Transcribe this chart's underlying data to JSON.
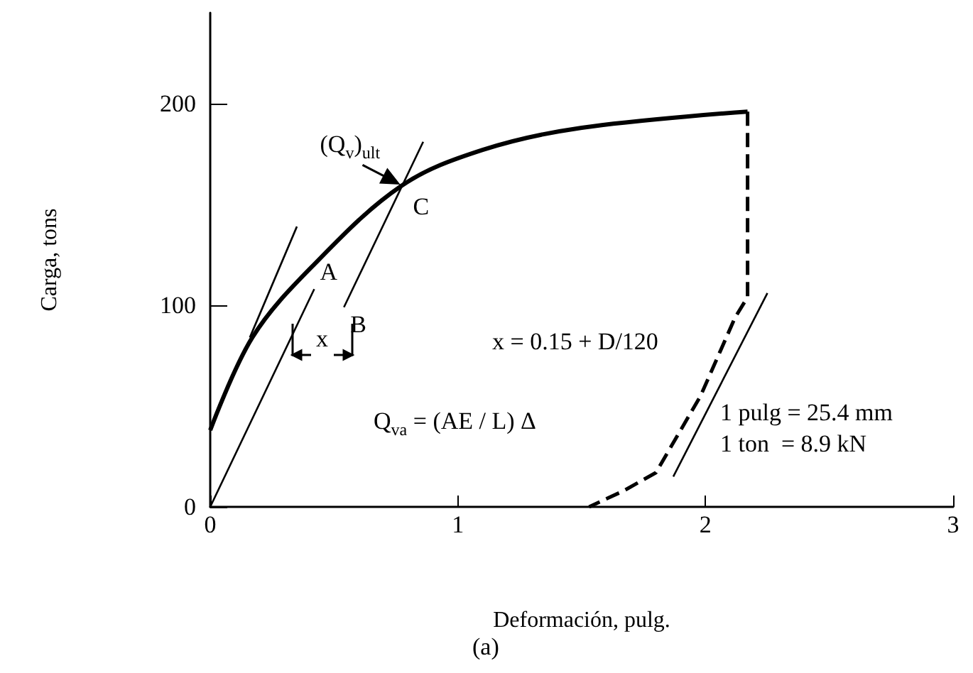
{
  "chart_data": {
    "type": "line",
    "xlabel": "Deformación, pulg.",
    "ylabel": "Carga, tons",
    "xlim": [
      0,
      3
    ],
    "ylim": [
      0,
      245
    ],
    "xticks": [
      0,
      1,
      2,
      3
    ],
    "yticks": [
      0,
      100,
      200
    ],
    "marker": "none",
    "series": [
      {
        "color": "#000000",
        "line_style": "solid",
        "x": [
          0,
          0.17,
          0.41,
          0.77,
          1.1,
          1.5,
          2.17
        ],
        "values": [
          38,
          84,
          119,
          159,
          177,
          188,
          196
        ]
      },
      {
        "color": "#000000",
        "line_style": "dashed",
        "x": [
          2.17,
          2.17,
          2.12,
          1.98,
          1.8,
          1.67,
          1.53
        ],
        "values": [
          196,
          104,
          94,
          55,
          17,
          8,
          0
        ]
      },
      {
        "color": "#000000",
        "line_style": "solid",
        "x": [
          0,
          0.42
        ],
        "values": [
          0,
          108
        ]
      },
      {
        "color": "#000000",
        "line_style": "solid",
        "x": [
          0.54,
          0.86
        ],
        "values": [
          99,
          181
        ]
      },
      {
        "color": "#000000",
        "line_style": "solid",
        "x": [
          0.16,
          0.35
        ],
        "values": [
          84,
          139
        ]
      },
      {
        "color": "#000000",
        "line_style": "solid",
        "x": [
          1.87,
          2.25
        ],
        "values": [
          15,
          106
        ]
      }
    ],
    "annotations": [
      {
        "text": "(Q$_{v}$)$_{ult}$",
        "x": 0.77,
        "y": 159
      },
      {
        "text": "A",
        "x": 0.42,
        "y": 108
      },
      {
        "text": "B",
        "x": 0.54,
        "y": 99
      },
      {
        "text": "C",
        "x": 0.77,
        "y": 159
      },
      "x",
      "x = 0.15 + D/120",
      "Q$_{va}$ = (AE / L) Δ",
      "1 pulg = 25.4 mm",
      "1 ton  = 8.9 kN",
      "(a)"
    ]
  }
}
